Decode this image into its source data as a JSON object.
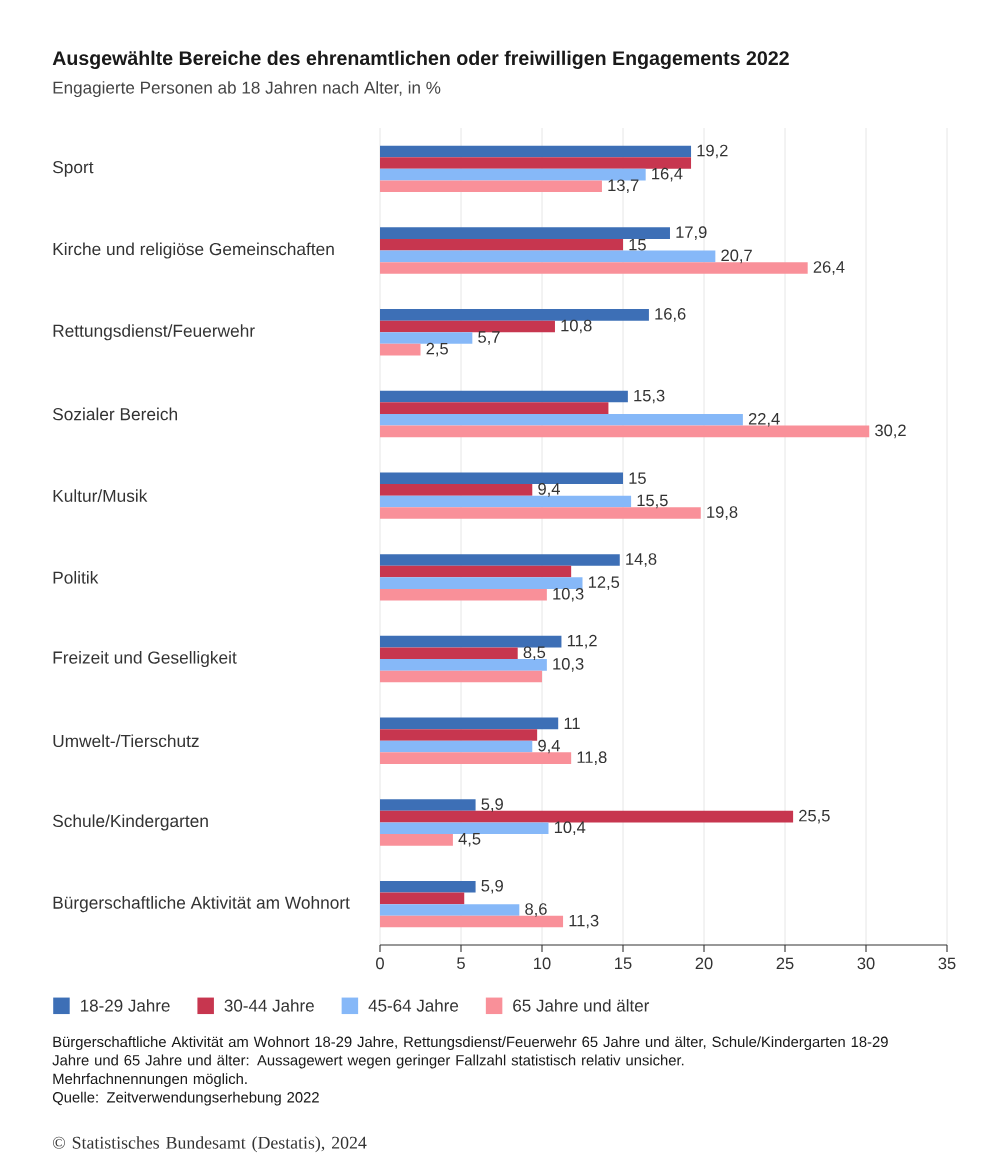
{
  "chart_data": {
    "type": "bar",
    "orientation": "horizontal",
    "title": "Ausgewählte Bereiche des ehrenamtlichen oder freiwilligen Engagements 2022",
    "subtitle": "Engagierte Personen ab 18 Jahren nach Alter, in %",
    "categories": [
      "Sport",
      "Kirche und religiöse Gemeinschaften",
      "Rettungsdienst/Feuerwehr",
      "Sozialer Bereich",
      "Kultur/Musik",
      "Politik",
      "Freizeit und Geselligkeit",
      "Umwelt-/Tierschutz",
      "Schule/Kindergarten",
      "Bürgerschaftliche Aktivität am Wohnort"
    ],
    "series": [
      {
        "name": "18-29 Jahre",
        "color": "#3d6fb6",
        "values": [
          19.2,
          17.9,
          16.6,
          15.3,
          15,
          14.8,
          11.2,
          11,
          5.9,
          5.9
        ],
        "value_labels": [
          "19,2",
          "17,9",
          "16,6",
          "15,3",
          "15",
          "14,8",
          "11,2",
          "11",
          "5,9",
          "5,9"
        ]
      },
      {
        "name": "30-44 Jahre",
        "color": "#c7364f",
        "values": [
          19.2,
          15,
          10.8,
          14.1,
          9.4,
          11.8,
          8.5,
          9.7,
          25.5,
          5.2
        ],
        "value_labels": [
          null,
          "15",
          "10,8",
          null,
          "9,4",
          null,
          "8,5",
          null,
          "25,5",
          null
        ]
      },
      {
        "name": "45-64 Jahre",
        "color": "#86b8f8",
        "values": [
          16.4,
          20.7,
          5.7,
          22.4,
          15.5,
          12.5,
          10.3,
          9.4,
          10.4,
          8.6
        ],
        "value_labels": [
          "16,4",
          "20,7",
          "5,7",
          "22,4",
          "15,5",
          "12,5",
          "10,3",
          "9,4",
          "10,4",
          "8,6"
        ]
      },
      {
        "name": "65 Jahre und älter",
        "color": "#f99099",
        "values": [
          13.7,
          26.4,
          2.5,
          30.2,
          19.8,
          10.3,
          10.0,
          11.8,
          4.5,
          11.3
        ],
        "value_labels": [
          "13,7",
          "26,4",
          "2,5",
          "30,2",
          "19,8",
          "10,3",
          null,
          "11,8",
          "4,5",
          "11,3"
        ]
      }
    ],
    "xlim": [
      0,
      35
    ],
    "xticks": [
      0,
      5,
      10,
      15,
      20,
      25,
      30,
      35
    ],
    "grid": "x",
    "legend": "bottom",
    "annotations": [
      "Bürgerschaftliche Aktivität am Wohnort 18-29 Jahre, Rettungsdienst/Feuerwehr 65 Jahre und älter, Schule/Kindergarten 18-29 Jahre und 65 Jahre und älter: Aussagewert wegen geringer Fallzahl statistisch relativ unsicher.",
      "Mehrfachnennungen möglich.",
      "Quelle: Zeitverwendungserhebung 2022",
      "© Statistisches Bundesamt (Destatis), 2024"
    ]
  }
}
